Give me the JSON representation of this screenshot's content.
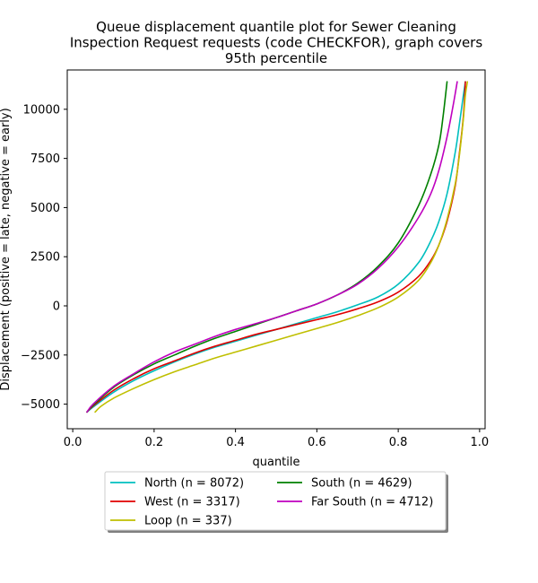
{
  "chart_data": {
    "type": "line",
    "title_lines": [
      "Queue displacement quantile plot for Sewer Cleaning",
      "Inspection Request  requests (code CHECKFOR), graph covers",
      "95th percentile"
    ],
    "xlabel": "quantile",
    "ylabel": "Displacement (positive = late, negative = early)",
    "xlim": [
      -0.0135,
      1.0135
    ],
    "ylim": [
      -6250,
      12000
    ],
    "xticks": [
      0.0,
      0.2,
      0.4,
      0.6,
      0.8,
      1.0
    ],
    "xtick_labels": [
      "0.0",
      "0.2",
      "0.4",
      "0.6",
      "0.8",
      "1.0"
    ],
    "yticks": [
      -5000,
      -2500,
      0,
      2500,
      5000,
      7500,
      10000
    ],
    "ytick_labels": [
      "−5000",
      "−2500",
      "0",
      "2500",
      "5000",
      "7500",
      "10000"
    ],
    "grid": false,
    "legend_position": "below",
    "series": [
      {
        "name": "North (n = 8072)",
        "color": "#00bfbf",
        "x": [
          0.035,
          0.05,
          0.1,
          0.15,
          0.2,
          0.25,
          0.3,
          0.35,
          0.4,
          0.45,
          0.5,
          0.55,
          0.6,
          0.65,
          0.7,
          0.75,
          0.8,
          0.85,
          0.88,
          0.9,
          0.92,
          0.94,
          0.95,
          0.96,
          0.965
        ],
        "y": [
          -5400,
          -5150,
          -4400,
          -3800,
          -3300,
          -2850,
          -2450,
          -2100,
          -1800,
          -1500,
          -1200,
          -900,
          -600,
          -300,
          50,
          450,
          1100,
          2200,
          3300,
          4300,
          5700,
          7800,
          9200,
          10700,
          11400
        ]
      },
      {
        "name": "West (n = 3317)",
        "color": "#e00000",
        "x": [
          0.035,
          0.05,
          0.1,
          0.15,
          0.2,
          0.25,
          0.3,
          0.35,
          0.4,
          0.45,
          0.5,
          0.55,
          0.6,
          0.65,
          0.7,
          0.75,
          0.8,
          0.85,
          0.88,
          0.9,
          0.92,
          0.94,
          0.95,
          0.96,
          0.965
        ],
        "y": [
          -5400,
          -5100,
          -4300,
          -3700,
          -3200,
          -2800,
          -2400,
          -2050,
          -1750,
          -1450,
          -1200,
          -950,
          -700,
          -450,
          -150,
          200,
          700,
          1500,
          2300,
          3100,
          4300,
          6100,
          7700,
          9600,
          11400
        ]
      },
      {
        "name": "Loop (n = 337)",
        "color": "#bfbf00",
        "x": [
          0.055,
          0.07,
          0.1,
          0.15,
          0.2,
          0.25,
          0.3,
          0.35,
          0.4,
          0.45,
          0.5,
          0.55,
          0.6,
          0.65,
          0.7,
          0.75,
          0.8,
          0.85,
          0.88,
          0.9,
          0.92,
          0.94,
          0.95,
          0.96,
          0.965,
          0.97
        ],
        "y": [
          -5400,
          -5100,
          -4700,
          -4200,
          -3750,
          -3350,
          -3000,
          -2650,
          -2350,
          -2050,
          -1750,
          -1450,
          -1150,
          -850,
          -500,
          -100,
          450,
          1300,
          2200,
          3100,
          4400,
          6200,
          7600,
          9500,
          10700,
          11400
        ]
      },
      {
        "name": "South (n = 4629)",
        "color": "#008000",
        "x": [
          0.035,
          0.05,
          0.1,
          0.15,
          0.2,
          0.25,
          0.3,
          0.35,
          0.4,
          0.45,
          0.5,
          0.55,
          0.6,
          0.65,
          0.7,
          0.75,
          0.8,
          0.85,
          0.88,
          0.9,
          0.91,
          0.92
        ],
        "y": [
          -5400,
          -5050,
          -4150,
          -3500,
          -2950,
          -2500,
          -2050,
          -1650,
          -1300,
          -950,
          -600,
          -250,
          100,
          550,
          1150,
          2000,
          3200,
          5100,
          6700,
          8200,
          9600,
          11400
        ]
      },
      {
        "name": "Far South (n = 4712)",
        "color": "#bf00bf",
        "x": [
          0.035,
          0.05,
          0.1,
          0.15,
          0.2,
          0.25,
          0.3,
          0.35,
          0.4,
          0.45,
          0.5,
          0.55,
          0.6,
          0.65,
          0.7,
          0.75,
          0.8,
          0.85,
          0.88,
          0.9,
          0.92,
          0.935,
          0.945
        ],
        "y": [
          -5400,
          -5000,
          -4100,
          -3450,
          -2850,
          -2350,
          -1950,
          -1550,
          -1200,
          -900,
          -600,
          -250,
          100,
          550,
          1100,
          1900,
          3000,
          4500,
          5700,
          6900,
          8600,
          10200,
          11400
        ]
      }
    ]
  }
}
